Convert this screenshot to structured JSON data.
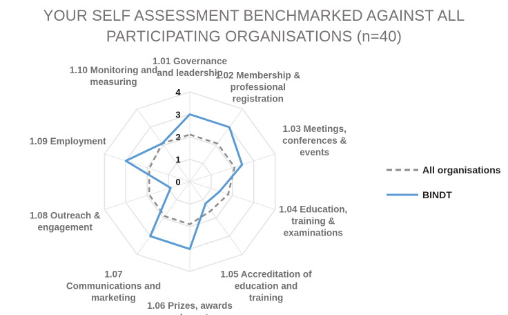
{
  "chart_data": {
    "type": "radar",
    "title_lines": [
      "YOUR SELF ASSESSMENT BENCHMARKED AGAINST ALL",
      "PARTICIPATING ORGANISATIONS (n=40)"
    ],
    "categories": [
      [
        "1.01 Governance",
        "and leadership"
      ],
      [
        "1.02 Membership &",
        "professional",
        "registration"
      ],
      [
        "1.03 Meetings,",
        "conferences &",
        "events"
      ],
      [
        "1.04 Education,",
        "training &",
        "examinations"
      ],
      [
        "1.05 Accreditation of",
        "education and",
        "training"
      ],
      [
        "1.06 Prizes, awards",
        "and grants"
      ],
      [
        "1.07",
        "Communications and",
        "marketing"
      ],
      [
        "1.08 Outreach &",
        "engagement"
      ],
      [
        "1.09 Employment"
      ],
      [
        "1.10 Monitoring and",
        "measuring"
      ]
    ],
    "rlim": [
      0,
      4
    ],
    "ticks": [
      "0",
      "1",
      "2",
      "3",
      "4"
    ],
    "series": [
      {
        "name": "All organisations",
        "color": "#8c8c8c",
        "dash": true,
        "values": [
          2.1,
          2.1,
          2.1,
          1.8,
          1.6,
          1.9,
          1.9,
          1.9,
          1.9,
          2.1
        ]
      },
      {
        "name": "BINDT",
        "color": "#5b9bd5",
        "dash": false,
        "values": [
          3.0,
          3.0,
          2.45,
          1.4,
          1.2,
          3.0,
          3.0,
          0.9,
          3.0,
          2.1
        ]
      }
    ],
    "legend_position": "right"
  }
}
